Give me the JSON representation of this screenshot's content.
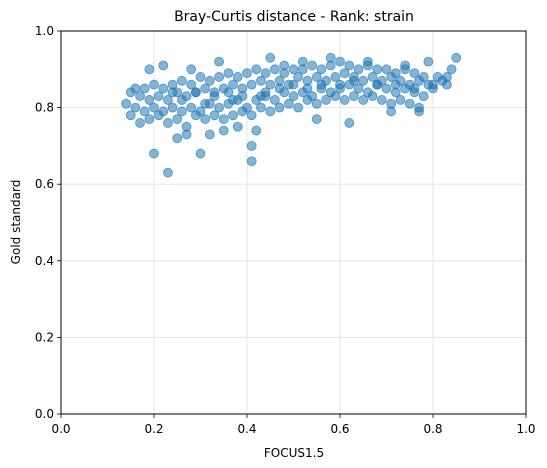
{
  "chart_data": {
    "type": "scatter",
    "title": "Bray-Curtis distance - Rank: strain",
    "xlabel": "FOCUS1.5",
    "ylabel": "Gold standard",
    "xlim": [
      0,
      1
    ],
    "ylim": [
      0,
      1
    ],
    "xticks": [
      0.0,
      0.2,
      0.4,
      0.6,
      0.8,
      1.0
    ],
    "yticks": [
      0.0,
      0.2,
      0.4,
      0.6,
      0.8,
      1.0
    ],
    "xtick_labels": [
      "0.0",
      "0.2",
      "0.4",
      "0.6",
      "0.8",
      "1.0"
    ],
    "ytick_labels": [
      "0.0",
      "0.2",
      "0.4",
      "0.6",
      "0.8",
      "1.0"
    ],
    "grid": true,
    "marker_color": "#1f77b4",
    "marker_alpha": 0.55,
    "series": [
      {
        "x": [
          0.14,
          0.15,
          0.15,
          0.16,
          0.17,
          0.17,
          0.18,
          0.18,
          0.19,
          0.19,
          0.2,
          0.2,
          0.21,
          0.21,
          0.22,
          0.22,
          0.23,
          0.23,
          0.24,
          0.24,
          0.25,
          0.25,
          0.26,
          0.26,
          0.27,
          0.27,
          0.28,
          0.28,
          0.29,
          0.29,
          0.3,
          0.3,
          0.31,
          0.31,
          0.32,
          0.32,
          0.33,
          0.33,
          0.34,
          0.34,
          0.35,
          0.35,
          0.36,
          0.36,
          0.37,
          0.37,
          0.38,
          0.38,
          0.39,
          0.39,
          0.4,
          0.4,
          0.41,
          0.41,
          0.42,
          0.42,
          0.43,
          0.43,
          0.44,
          0.44,
          0.45,
          0.45,
          0.46,
          0.46,
          0.47,
          0.47,
          0.48,
          0.48,
          0.49,
          0.49,
          0.5,
          0.5,
          0.51,
          0.51,
          0.52,
          0.52,
          0.53,
          0.53,
          0.54,
          0.54,
          0.55,
          0.55,
          0.56,
          0.56,
          0.57,
          0.57,
          0.58,
          0.58,
          0.59,
          0.59,
          0.6,
          0.6,
          0.61,
          0.61,
          0.62,
          0.62,
          0.63,
          0.63,
          0.64,
          0.64,
          0.65,
          0.65,
          0.66,
          0.66,
          0.67,
          0.67,
          0.68,
          0.68,
          0.69,
          0.69,
          0.7,
          0.7,
          0.71,
          0.71,
          0.72,
          0.72,
          0.73,
          0.73,
          0.74,
          0.74,
          0.75,
          0.75,
          0.76,
          0.76,
          0.77,
          0.77,
          0.78,
          0.78,
          0.79,
          0.8,
          0.81,
          0.82,
          0.83,
          0.84,
          0.85,
          0.2,
          0.23,
          0.3,
          0.41,
          0.41,
          0.42,
          0.32,
          0.35,
          0.38,
          0.25,
          0.27,
          0.55,
          0.62,
          0.71,
          0.77,
          0.19,
          0.22,
          0.16,
          0.28,
          0.34,
          0.45,
          0.48,
          0.52,
          0.58,
          0.66,
          0.74,
          0.79,
          0.83,
          0.26,
          0.31,
          0.37,
          0.43,
          0.24,
          0.29,
          0.33,
          0.36,
          0.39,
          0.44,
          0.47,
          0.5,
          0.53,
          0.56,
          0.6,
          0.63,
          0.68,
          0.72,
          0.76,
          0.8
        ],
        "y": [
          0.81,
          0.78,
          0.84,
          0.8,
          0.83,
          0.76,
          0.85,
          0.79,
          0.82,
          0.77,
          0.86,
          0.8,
          0.83,
          0.78,
          0.85,
          0.79,
          0.82,
          0.76,
          0.86,
          0.8,
          0.84,
          0.77,
          0.87,
          0.79,
          0.83,
          0.75,
          0.86,
          0.8,
          0.84,
          0.78,
          0.88,
          0.79,
          0.85,
          0.77,
          0.87,
          0.81,
          0.84,
          0.78,
          0.88,
          0.8,
          0.85,
          0.77,
          0.89,
          0.81,
          0.86,
          0.78,
          0.88,
          0.82,
          0.85,
          0.79,
          0.89,
          0.8,
          0.86,
          0.78,
          0.9,
          0.82,
          0.87,
          0.8,
          0.89,
          0.83,
          0.86,
          0.79,
          0.9,
          0.82,
          0.87,
          0.8,
          0.89,
          0.84,
          0.86,
          0.81,
          0.9,
          0.83,
          0.88,
          0.8,
          0.9,
          0.84,
          0.87,
          0.82,
          0.91,
          0.83,
          0.88,
          0.81,
          0.9,
          0.85,
          0.87,
          0.82,
          0.91,
          0.84,
          0.88,
          0.83,
          0.92,
          0.85,
          0.89,
          0.82,
          0.91,
          0.86,
          0.88,
          0.83,
          0.9,
          0.85,
          0.87,
          0.82,
          0.91,
          0.84,
          0.88,
          0.83,
          0.9,
          0.86,
          0.87,
          0.82,
          0.9,
          0.85,
          0.88,
          0.81,
          0.89,
          0.84,
          0.87,
          0.82,
          0.9,
          0.85,
          0.86,
          0.81,
          0.89,
          0.84,
          0.87,
          0.8,
          0.88,
          0.83,
          0.86,
          0.85,
          0.88,
          0.87,
          0.86,
          0.9,
          0.93,
          0.68,
          0.63,
          0.68,
          0.7,
          0.66,
          0.74,
          0.73,
          0.74,
          0.75,
          0.72,
          0.73,
          0.77,
          0.76,
          0.79,
          0.79,
          0.9,
          0.91,
          0.85,
          0.9,
          0.92,
          0.93,
          0.91,
          0.92,
          0.93,
          0.92,
          0.91,
          0.92,
          0.88,
          0.82,
          0.81,
          0.82,
          0.83,
          0.84,
          0.84,
          0.83,
          0.84,
          0.83,
          0.84,
          0.85,
          0.86,
          0.85,
          0.86,
          0.86,
          0.87,
          0.86,
          0.86,
          0.85,
          0.86
        ]
      }
    ]
  }
}
